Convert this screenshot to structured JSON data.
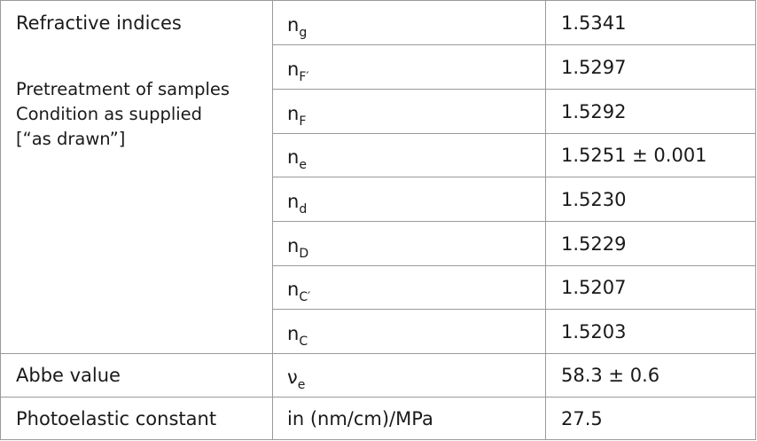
{
  "table": {
    "refractive": {
      "label": "Refractive indices",
      "condition": [
        "Pretreatment of samples",
        "Condition as supplied",
        "[“as drawn”]"
      ],
      "rows": [
        {
          "base": "n",
          "sub": "g",
          "value": "1.5341"
        },
        {
          "base": "n",
          "sub": "F′",
          "value": "1.5297"
        },
        {
          "base": "n",
          "sub": "F",
          "value": "1.5292"
        },
        {
          "base": "n",
          "sub": "e",
          "value": "1.5251 ± 0.001"
        },
        {
          "base": "n",
          "sub": "d",
          "value": "1.5230"
        },
        {
          "base": "n",
          "sub": "D",
          "value": "1.5229"
        },
        {
          "base": "n",
          "sub": "C′",
          "value": "1.5207"
        },
        {
          "base": "n",
          "sub": "C",
          "value": "1.5203"
        }
      ]
    },
    "abbe": {
      "label": "Abbe value",
      "base": "ν",
      "sub": "e",
      "value": "58.3 ± 0.6"
    },
    "photoelastic": {
      "label": "Photoelastic constant",
      "unit": "in (nm/cm)/MPa",
      "value": "27.5"
    }
  }
}
